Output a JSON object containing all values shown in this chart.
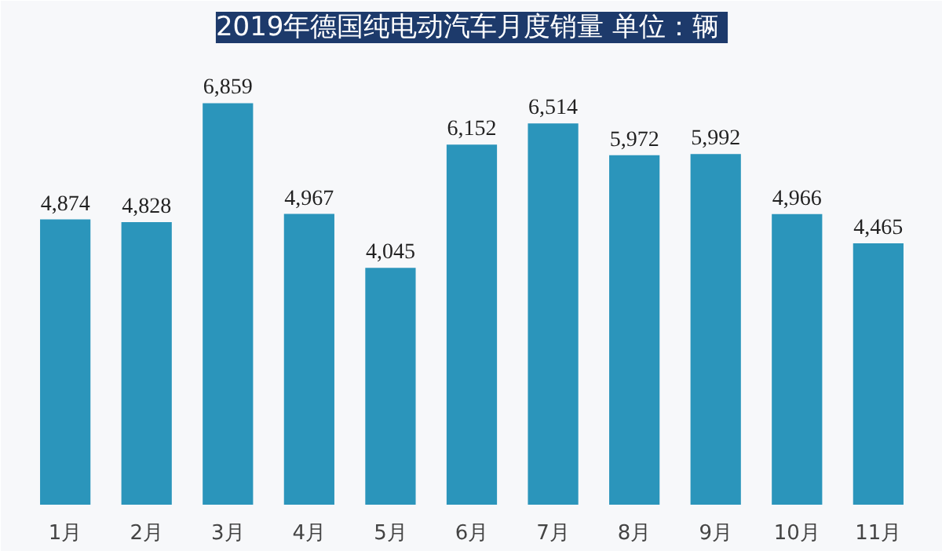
{
  "chart_data": {
    "type": "bar",
    "title": "2019年德国纯电动汽车月度销量  单位：辆",
    "categories": [
      "1月",
      "2月",
      "3月",
      "4月",
      "5月",
      "6月",
      "7月",
      "8月",
      "9月",
      "10月",
      "11月"
    ],
    "values": [
      4874,
      4828,
      6859,
      4967,
      4045,
      6152,
      6514,
      5972,
      5992,
      4966,
      4465
    ],
    "value_labels": [
      "4,874",
      "4,828",
      "6,859",
      "4,967",
      "4,045",
      "6,152",
      "6,514",
      "5,972",
      "5,992",
      "4,966",
      "4,465"
    ],
    "color": "#2b95bb",
    "grid": false
  }
}
